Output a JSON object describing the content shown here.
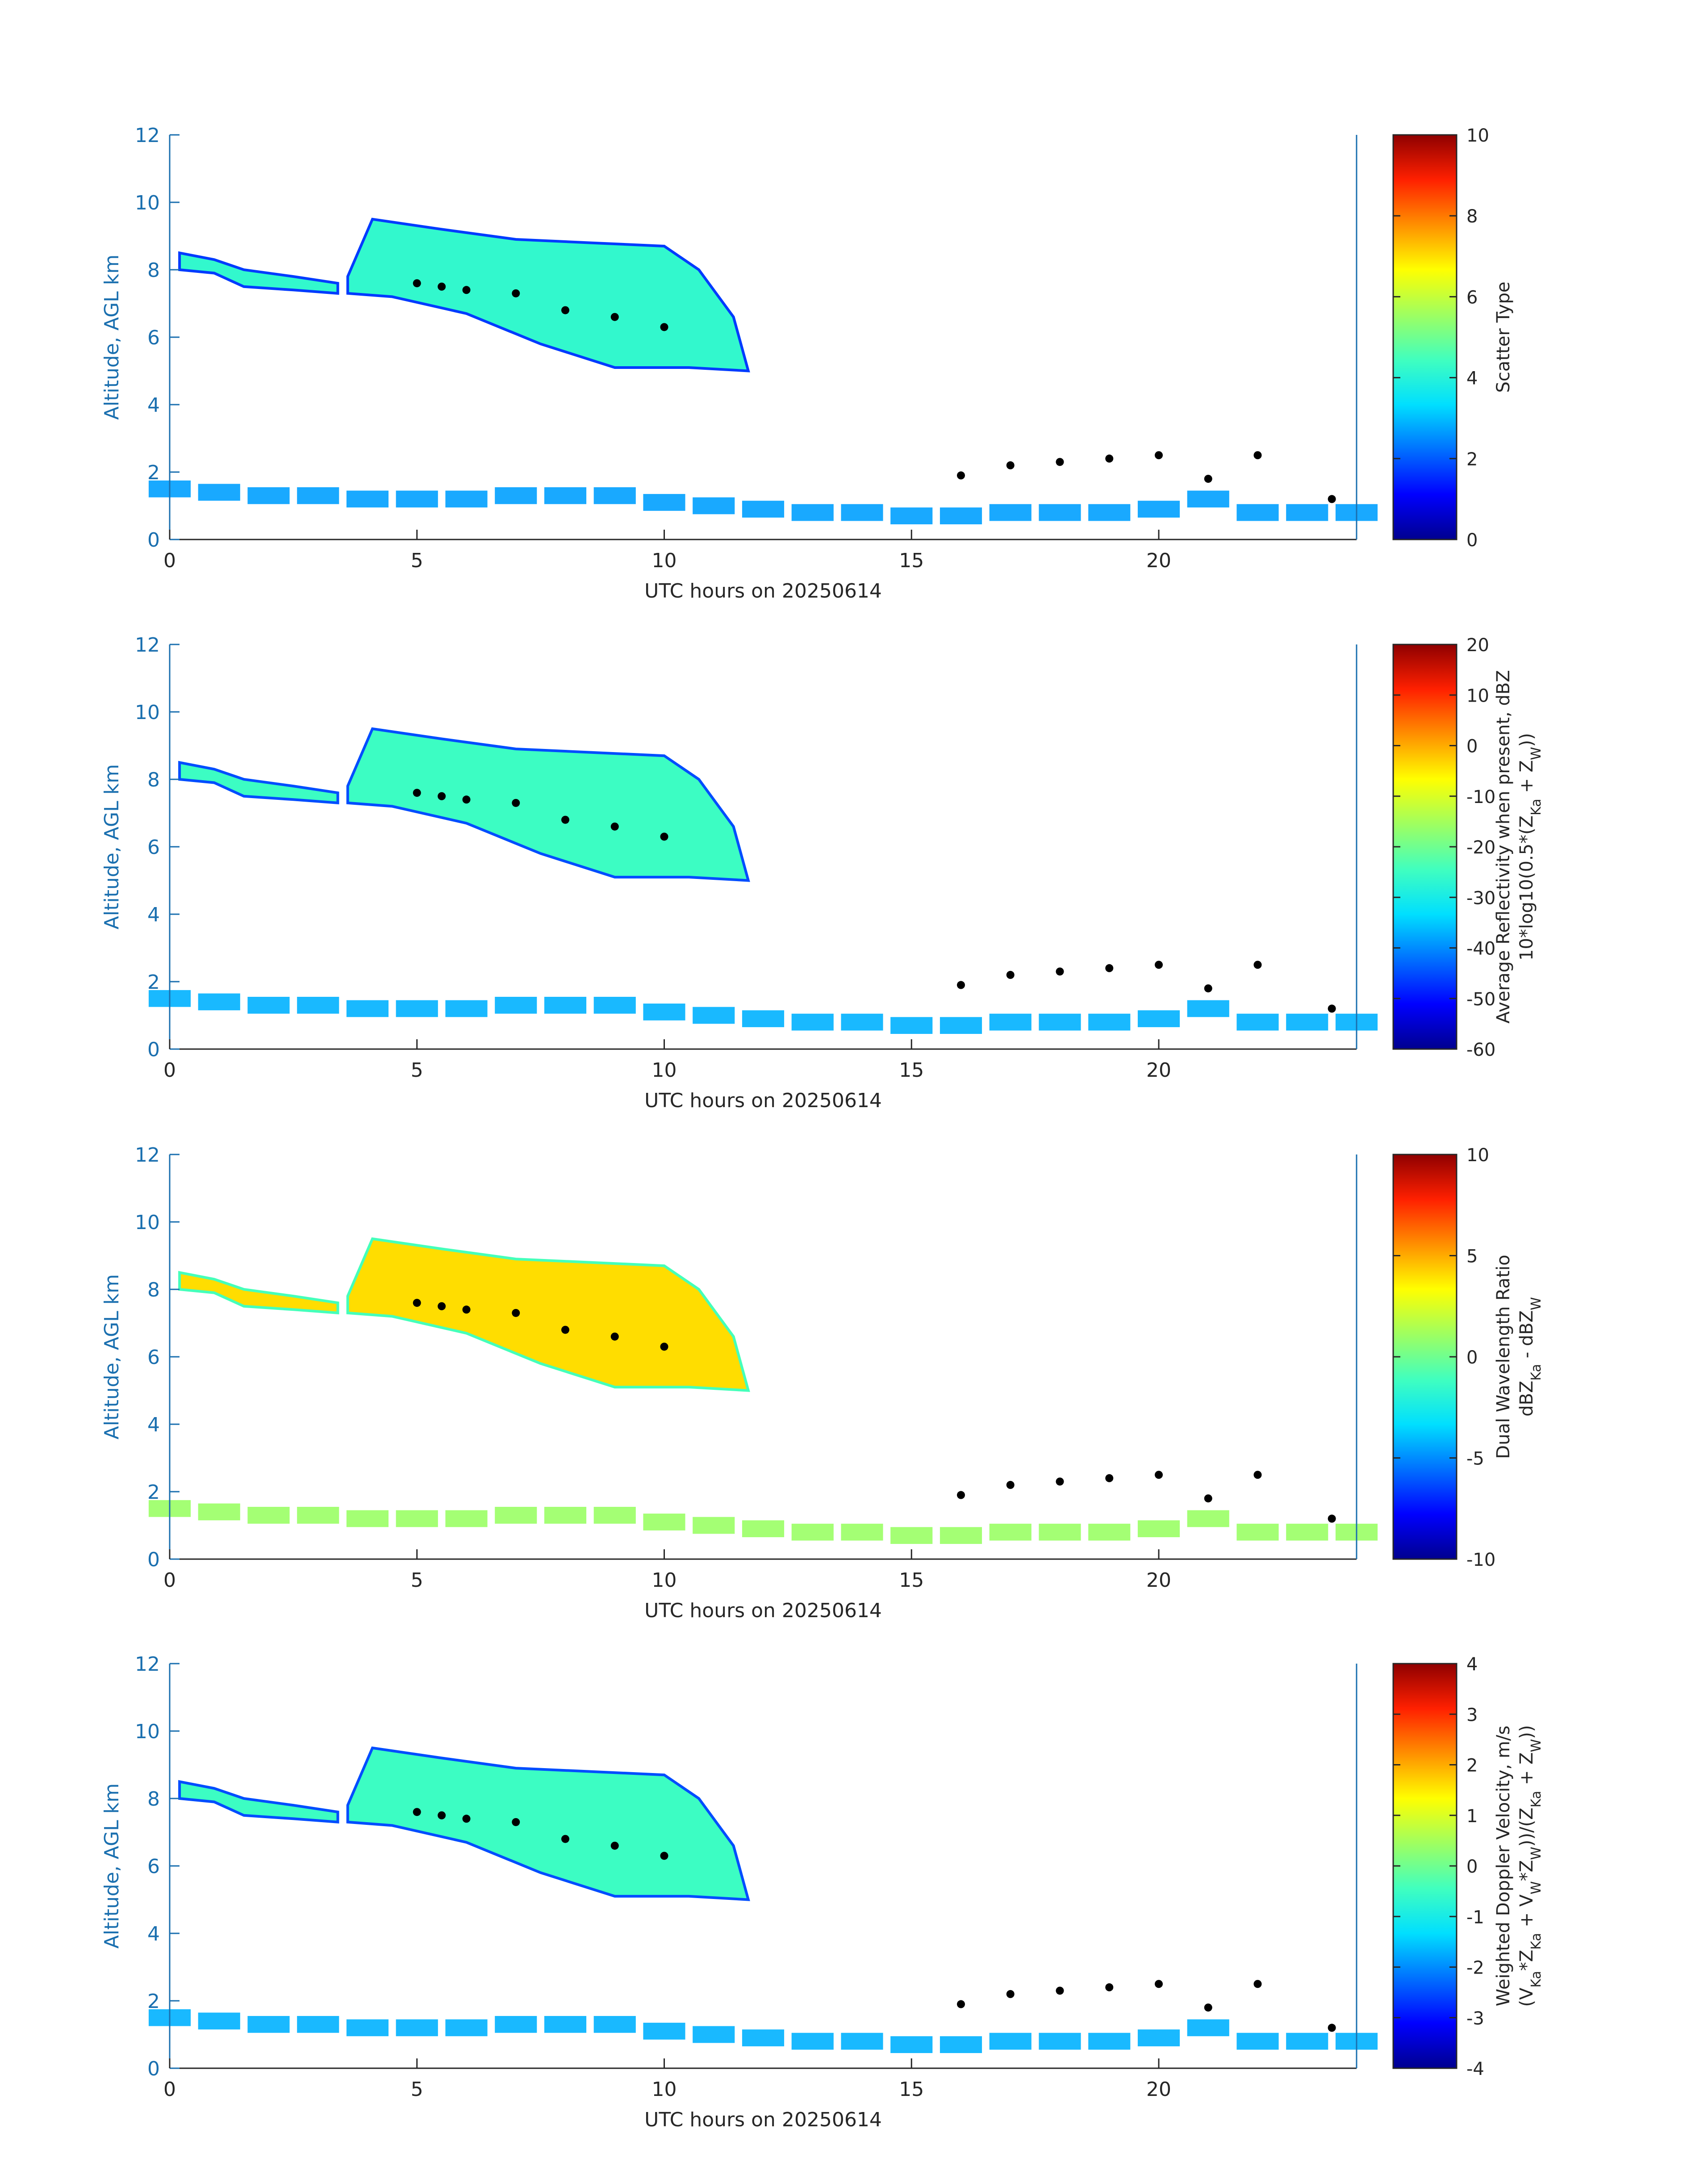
{
  "colors": {
    "axis": "#1a6faf",
    "text": "#262626",
    "cloud_dots": "#000000"
  },
  "colormap": [
    "#00008f",
    "#0000ff",
    "#0070ff",
    "#00dfff",
    "#40ffbf",
    "#9fff60",
    "#ffff00",
    "#ff8f00",
    "#ff2000",
    "#8f0000"
  ],
  "chart_data": [
    {
      "type": "heatmap",
      "panel": "scatter-type",
      "ylabel": "Altitude, AGL km",
      "xlabel": "UTC hours on 20250614",
      "xlim": [
        0,
        24
      ],
      "ylim": [
        0,
        12
      ],
      "xticks": [
        0,
        5,
        10,
        15,
        20
      ],
      "yticks": [
        0,
        2,
        4,
        6,
        8,
        10,
        12
      ],
      "cloud_value": 4.2,
      "colorbar": {
        "label_lines": [
          "Scatter Type"
        ],
        "min": 0,
        "max": 10,
        "ticks": [
          0,
          2,
          4,
          6,
          8,
          10
        ],
        "tick_labels": [
          "0",
          "2",
          "4",
          "6",
          "8",
          "10"
        ]
      }
    },
    {
      "type": "heatmap",
      "panel": "average-reflectivity",
      "ylabel": "Altitude, AGL km",
      "xlabel": "UTC hours on 20250614",
      "xlim": [
        0,
        24
      ],
      "ylim": [
        0,
        12
      ],
      "xticks": [
        0,
        5,
        10,
        15,
        20
      ],
      "yticks": [
        0,
        2,
        4,
        6,
        8,
        10,
        12
      ],
      "cloud_value": -25,
      "colorbar": {
        "label_lines": [
          "Average Reflectivity when present, dBZ",
          "10*log10(0.5*(Z_Ka + Z_W))"
        ],
        "min": -60,
        "max": 20,
        "ticks": [
          -60,
          -50,
          -40,
          -30,
          -20,
          -10,
          0,
          10,
          20
        ],
        "tick_labels": [
          "-60",
          "-50",
          "-40",
          "-30",
          "-20",
          "-10",
          "0",
          "10",
          "20"
        ]
      }
    },
    {
      "type": "heatmap",
      "panel": "dual-wavelength-ratio",
      "ylabel": "Altitude, AGL km",
      "xlabel": "UTC hours on 20250614",
      "xlim": [
        0,
        24
      ],
      "ylim": [
        0,
        12
      ],
      "xticks": [
        0,
        5,
        10,
        15,
        20
      ],
      "yticks": [
        0,
        2,
        4,
        6,
        8,
        10,
        12
      ],
      "cloud_value": 4,
      "colorbar": {
        "label_lines": [
          "Dual Wavelength Ratio",
          "dBZ_Ka - dBZ_W"
        ],
        "min": -10,
        "max": 10,
        "ticks": [
          -10,
          -5,
          0,
          5,
          10
        ],
        "tick_labels": [
          "-10",
          "-5",
          "0",
          "5",
          "10"
        ]
      }
    },
    {
      "type": "heatmap",
      "panel": "weighted-doppler-velocity",
      "ylabel": "Altitude, AGL km",
      "xlabel": "UTC hours on 20250614",
      "xlim": [
        0,
        24
      ],
      "ylim": [
        0,
        12
      ],
      "xticks": [
        0,
        5,
        10,
        15,
        20
      ],
      "yticks": [
        0,
        2,
        4,
        6,
        8,
        10,
        12
      ],
      "cloud_value": -0.5,
      "colorbar": {
        "label_lines": [
          "Weighted Doppler Velocity, m/s",
          "(V_Ka*Z_Ka + V_W*Z_W))/(Z_Ka + Z_W))"
        ],
        "min": -4,
        "max": 4,
        "ticks": [
          -4,
          -3,
          -2,
          -1,
          0,
          1,
          2,
          3,
          4
        ],
        "tick_labels": [
          "-4",
          "-3",
          "-2",
          "-1",
          "0",
          "1",
          "2",
          "3",
          "4"
        ]
      }
    }
  ],
  "cloud_regions": [
    {
      "name": "upper-cirrus-main",
      "points": [
        [
          3.6,
          7.8
        ],
        [
          4.1,
          9.5
        ],
        [
          5.5,
          9.2
        ],
        [
          7.0,
          8.9
        ],
        [
          8.5,
          8.8
        ],
        [
          10.0,
          8.7
        ],
        [
          10.7,
          8.0
        ],
        [
          11.4,
          6.6
        ],
        [
          11.7,
          5.0
        ],
        [
          10.5,
          5.1
        ],
        [
          9.0,
          5.1
        ],
        [
          7.5,
          5.8
        ],
        [
          6.0,
          6.7
        ],
        [
          4.5,
          7.2
        ],
        [
          3.6,
          7.3
        ]
      ]
    },
    {
      "name": "upper-cirrus-left",
      "points": [
        [
          0.2,
          8.5
        ],
        [
          0.9,
          8.3
        ],
        [
          1.5,
          8.0
        ],
        [
          2.5,
          7.8
        ],
        [
          3.4,
          7.6
        ],
        [
          3.4,
          7.3
        ],
        [
          2.5,
          7.4
        ],
        [
          1.5,
          7.5
        ],
        [
          0.9,
          7.9
        ],
        [
          0.2,
          8.0
        ]
      ]
    }
  ],
  "boundary_layer": [
    [
      0.0,
      1.5
    ],
    [
      1.0,
      1.4
    ],
    [
      2.0,
      1.3
    ],
    [
      3.0,
      1.3
    ],
    [
      4.0,
      1.2
    ],
    [
      5.0,
      1.2
    ],
    [
      6.0,
      1.2
    ],
    [
      7.0,
      1.3
    ],
    [
      8.0,
      1.3
    ],
    [
      9.0,
      1.3
    ],
    [
      10.0,
      1.1
    ],
    [
      11.0,
      1.0
    ],
    [
      12.0,
      0.9
    ],
    [
      13.0,
      0.8
    ],
    [
      14.0,
      0.8
    ],
    [
      15.0,
      0.7
    ],
    [
      16.0,
      0.7
    ],
    [
      17.0,
      0.8
    ],
    [
      18.0,
      0.8
    ],
    [
      19.0,
      0.8
    ],
    [
      20.0,
      0.9
    ],
    [
      21.0,
      1.2
    ],
    [
      22.0,
      0.8
    ],
    [
      23.0,
      0.8
    ],
    [
      24.0,
      0.8
    ]
  ],
  "cloud_base_top": [
    [
      5.0,
      7.6
    ],
    [
      5.5,
      7.5
    ],
    [
      6.0,
      7.4
    ],
    [
      7.0,
      7.3
    ],
    [
      8.0,
      6.8
    ],
    [
      9.0,
      6.6
    ],
    [
      10.0,
      6.3
    ],
    [
      16.0,
      1.9
    ],
    [
      17.0,
      2.2
    ],
    [
      18.0,
      2.3
    ],
    [
      19.0,
      2.4
    ],
    [
      20.0,
      2.5
    ],
    [
      21.0,
      1.8
    ],
    [
      22.0,
      2.5
    ],
    [
      23.5,
      1.2
    ]
  ]
}
